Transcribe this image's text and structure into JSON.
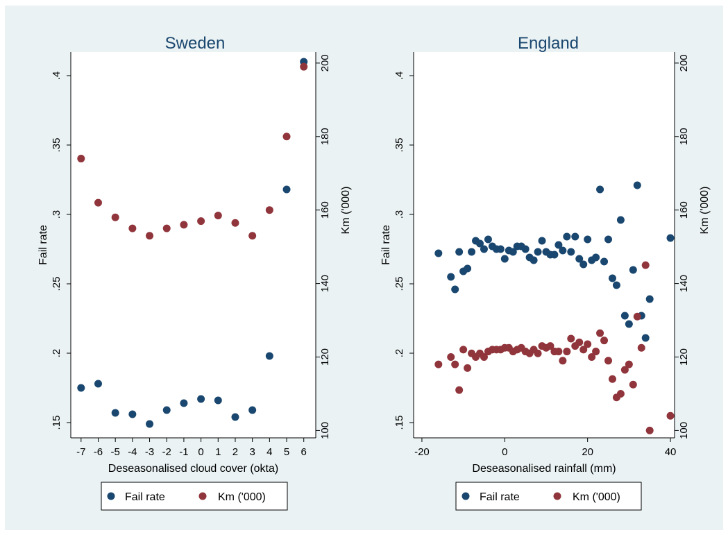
{
  "colors": {
    "background": "#eaf2f3",
    "plot_area": "#ffffff",
    "title": "#1a476f",
    "series_fail": "#1a476f",
    "series_km": "#90353b"
  },
  "chart_data": [
    {
      "type": "scatter",
      "title": "Sweden",
      "xlabel": "Deseasonalised cloud cover (okta)",
      "ylabel": "Fail rate",
      "y2label": "Km ('000)",
      "xlim": [
        -7.6,
        6.7
      ],
      "ylim": [
        0.139,
        0.417
      ],
      "y2lim": [
        98.0,
        203.0
      ],
      "xticks": [
        -7,
        -6,
        -5,
        -4,
        -3,
        -2,
        -1,
        0,
        1,
        2,
        3,
        4,
        5,
        6
      ],
      "yticks": [
        0.15,
        0.2,
        0.25,
        0.3,
        0.35,
        0.4
      ],
      "ytick_labels": [
        ".15",
        ".2",
        ".25",
        ".3",
        ".35",
        ".4"
      ],
      "y2ticks": [
        100,
        120,
        140,
        160,
        180,
        200
      ],
      "ytick_rotation": -90,
      "grid": false,
      "legend": "bottom",
      "series": [
        {
          "name": "Fail rate",
          "axis": "left",
          "x": [
            -7,
            -6,
            -5,
            -4,
            -3,
            -2,
            -1,
            0,
            1,
            2,
            3,
            4,
            5,
            6
          ],
          "y": [
            0.175,
            0.178,
            0.157,
            0.156,
            0.149,
            0.159,
            0.164,
            0.167,
            0.166,
            0.154,
            0.159,
            0.198,
            0.318,
            0.41
          ]
        },
        {
          "name": "Km ('000)",
          "axis": "right",
          "x": [
            -7,
            -6,
            -5,
            -4,
            -3,
            -2,
            -1,
            0,
            1,
            2,
            3,
            4,
            5,
            6
          ],
          "y": [
            174,
            162,
            158,
            155,
            153,
            155,
            156,
            157,
            158.5,
            156.5,
            153,
            160,
            180,
            199
          ]
        }
      ]
    },
    {
      "type": "scatter",
      "title": "England",
      "xlabel": "Deseasonalised rainfall (mm)",
      "ylabel": "Fail rate",
      "y2label": "Km ('000)",
      "xlim": [
        -22,
        41
      ],
      "ylim": [
        0.139,
        0.417
      ],
      "y2lim": [
        98.0,
        203.0
      ],
      "xticks": [
        -20,
        0,
        20,
        40
      ],
      "yticks": [
        0.15,
        0.2,
        0.25,
        0.3,
        0.35,
        0.4
      ],
      "ytick_labels": [
        ".15",
        ".2",
        ".25",
        ".3",
        ".35",
        ".4"
      ],
      "y2ticks": [
        100,
        120,
        140,
        160,
        180,
        200
      ],
      "ytick_rotation": -90,
      "grid": false,
      "legend": "bottom",
      "series": [
        {
          "name": "Fail rate",
          "axis": "left",
          "x": [
            -16,
            -13,
            -12,
            -11,
            -10,
            -9,
            -8,
            -7,
            -6,
            -5,
            -4,
            -3,
            -2,
            -1,
            0,
            1,
            2,
            3,
            4,
            5,
            6,
            7,
            8,
            9,
            10,
            11,
            12,
            13,
            14,
            15,
            16,
            17,
            18,
            19,
            20,
            21,
            22,
            23,
            24,
            25,
            26,
            27,
            28,
            29,
            30,
            31,
            32,
            33,
            34,
            35,
            40
          ],
          "y": [
            0.272,
            0.255,
            0.246,
            0.273,
            0.259,
            0.261,
            0.273,
            0.281,
            0.279,
            0.275,
            0.282,
            0.277,
            0.275,
            0.275,
            0.268,
            0.274,
            0.273,
            0.277,
            0.277,
            0.275,
            0.269,
            0.267,
            0.273,
            0.281,
            0.273,
            0.271,
            0.271,
            0.278,
            0.274,
            0.284,
            0.273,
            0.284,
            0.268,
            0.264,
            0.282,
            0.267,
            0.269,
            0.318,
            0.266,
            0.282,
            0.254,
            0.249,
            0.296,
            0.227,
            0.221,
            0.26,
            0.321,
            0.227,
            0.211,
            0.239,
            0.283
          ]
        },
        {
          "name": "Km ('000)",
          "axis": "right",
          "x": [
            -16,
            -13,
            -12,
            -11,
            -10,
            -9,
            -8,
            -7,
            -6,
            -5,
            -4,
            -3,
            -2,
            -1,
            0,
            1,
            2,
            3,
            4,
            5,
            6,
            7,
            8,
            9,
            10,
            11,
            12,
            13,
            14,
            15,
            16,
            17,
            18,
            19,
            20,
            21,
            22,
            23,
            24,
            25,
            26,
            27,
            28,
            29,
            30,
            31,
            32,
            33,
            34,
            35,
            40
          ],
          "y": [
            118,
            120,
            118,
            111,
            122,
            117,
            121,
            120,
            121,
            120,
            121.5,
            122,
            122,
            122,
            122.5,
            122.5,
            121.5,
            122,
            122.5,
            121.5,
            121,
            122,
            121,
            123,
            122.5,
            123,
            121.5,
            121.5,
            119,
            121.5,
            125,
            123,
            124,
            122,
            123.5,
            120,
            121.5,
            126.5,
            124.5,
            119,
            114,
            109,
            110,
            116.5,
            118,
            112.5,
            131,
            122.5,
            145,
            100,
            104
          ]
        }
      ]
    }
  ],
  "legend": {
    "items": [
      {
        "label": "Fail rate",
        "color": "#1a476f"
      },
      {
        "label": "Km ('000)",
        "color": "#90353b"
      }
    ]
  }
}
